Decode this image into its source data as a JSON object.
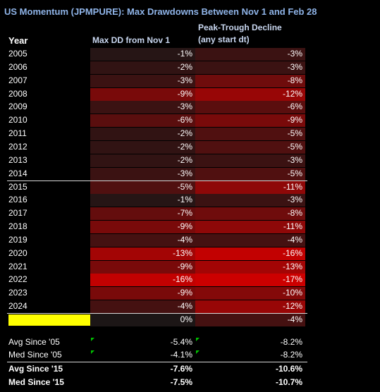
{
  "title": "US Momentum (JPMPURE): Max Drawdowns Between Nov 1 and Feb 28",
  "headers": {
    "year": "Year",
    "max_dd": "Max DD from Nov 1",
    "peak_trough_line1": "Peak-Trough Decline",
    "peak_trough_line2": "(any start dt)"
  },
  "colors": {
    "background": "#000000",
    "title": "#8fb4e8",
    "highlight": "#ffff00"
  },
  "chart_data": {
    "type": "table",
    "columns": [
      "Year",
      "Max DD from Nov 1",
      "Peak-Trough Decline (any start dt)"
    ],
    "rows": [
      {
        "year": "2005",
        "max_dd": "-1%",
        "pt": "-3%",
        "max_dd_v": -1,
        "pt_v": -3
      },
      {
        "year": "2006",
        "max_dd": "-2%",
        "pt": "-3%",
        "max_dd_v": -2,
        "pt_v": -3
      },
      {
        "year": "2007",
        "max_dd": "-3%",
        "pt": "-8%",
        "max_dd_v": -3,
        "pt_v": -8
      },
      {
        "year": "2008",
        "max_dd": "-9%",
        "pt": "-12%",
        "max_dd_v": -9,
        "pt_v": -12
      },
      {
        "year": "2009",
        "max_dd": "-3%",
        "pt": "-6%",
        "max_dd_v": -3,
        "pt_v": -6
      },
      {
        "year": "2010",
        "max_dd": "-6%",
        "pt": "-9%",
        "max_dd_v": -6,
        "pt_v": -9
      },
      {
        "year": "2011",
        "max_dd": "-2%",
        "pt": "-5%",
        "max_dd_v": -2,
        "pt_v": -5
      },
      {
        "year": "2012",
        "max_dd": "-2%",
        "pt": "-5%",
        "max_dd_v": -2,
        "pt_v": -5
      },
      {
        "year": "2013",
        "max_dd": "-2%",
        "pt": "-3%",
        "max_dd_v": -2,
        "pt_v": -3
      },
      {
        "year": "2014",
        "max_dd": "-3%",
        "pt": "-5%",
        "max_dd_v": -3,
        "pt_v": -5
      },
      {
        "year": "2015",
        "max_dd": "-5%",
        "pt": "-11%",
        "max_dd_v": -5,
        "pt_v": -11
      },
      {
        "year": "2016",
        "max_dd": "-1%",
        "pt": "-3%",
        "max_dd_v": -1,
        "pt_v": -3
      },
      {
        "year": "2017",
        "max_dd": "-7%",
        "pt": "-8%",
        "max_dd_v": -7,
        "pt_v": -8
      },
      {
        "year": "2018",
        "max_dd": "-9%",
        "pt": "-11%",
        "max_dd_v": -9,
        "pt_v": -11
      },
      {
        "year": "2019",
        "max_dd": "-4%",
        "pt": "-4%",
        "max_dd_v": -4,
        "pt_v": -4
      },
      {
        "year": "2020",
        "max_dd": "-13%",
        "pt": "-16%",
        "max_dd_v": -13,
        "pt_v": -16
      },
      {
        "year": "2021",
        "max_dd": "-9%",
        "pt": "-13%",
        "max_dd_v": -9,
        "pt_v": -13
      },
      {
        "year": "2022",
        "max_dd": "-16%",
        "pt": "-17%",
        "max_dd_v": -16,
        "pt_v": -17
      },
      {
        "year": "2023",
        "max_dd": "-9%",
        "pt": "-10%",
        "max_dd_v": -9,
        "pt_v": -10
      },
      {
        "year": "2024",
        "max_dd": "-4%",
        "pt": "-12%",
        "max_dd_v": -4,
        "pt_v": -12
      }
    ],
    "ytd_row": {
      "max_dd": "0%",
      "pt": "-4%",
      "max_dd_v": 0,
      "pt_v": -4
    },
    "stats": [
      {
        "label": "Avg Since '05",
        "max_dd": "-5.4%",
        "pt": "-8.2%",
        "bold": false
      },
      {
        "label": "Med Since '05",
        "max_dd": "-4.1%",
        "pt": "-8.2%",
        "bold": false
      },
      {
        "label": "Avg Since '15",
        "max_dd": "-7.6%",
        "pt": "-10.6%",
        "bold": true
      },
      {
        "label": "Med Since '15",
        "max_dd": "-7.5%",
        "pt": "-10.7%",
        "bold": true
      }
    ]
  }
}
